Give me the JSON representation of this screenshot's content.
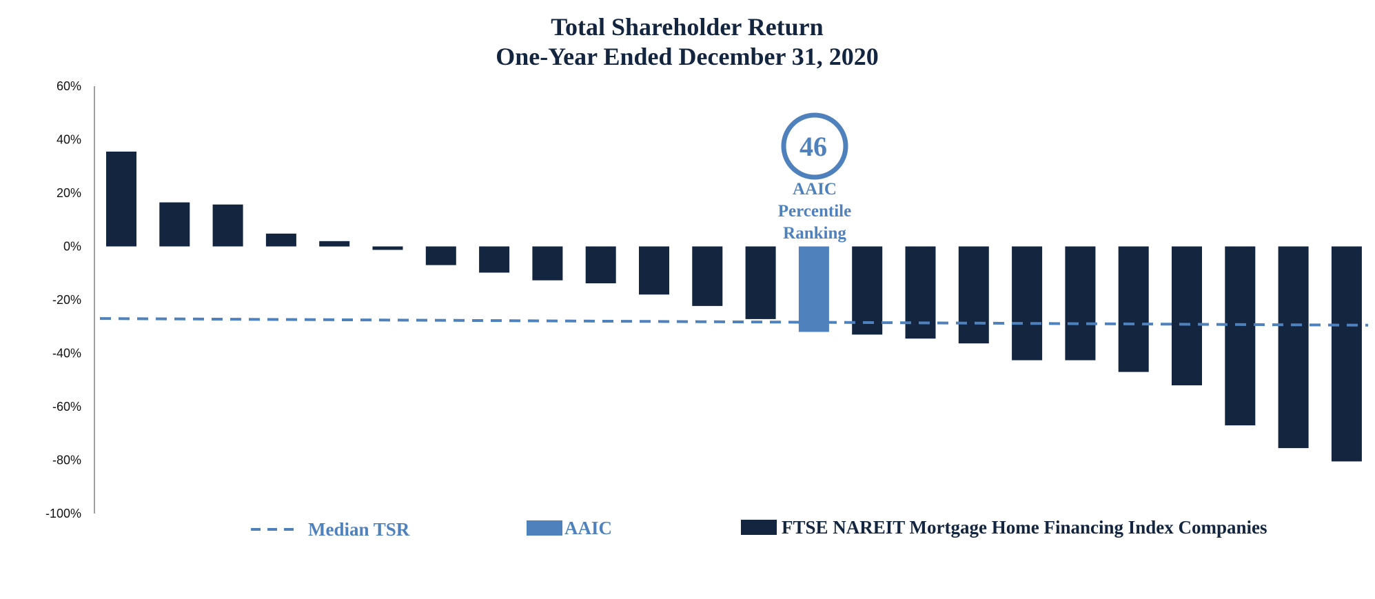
{
  "chart_data": {
    "type": "bar",
    "title_lines": [
      "Total Shareholder Return",
      "One-Year Ended December 31, 2020"
    ],
    "ylim": [
      -100,
      60
    ],
    "y_ticks": [
      60,
      40,
      20,
      0,
      -20,
      -40,
      -60,
      -80,
      -100
    ],
    "y_tick_labels": [
      "60%",
      "40%",
      "20%",
      "0%",
      "-20%",
      "-40%",
      "-60%",
      "-80%",
      "-100%"
    ],
    "xlabel": "",
    "ylabel": "",
    "grid": false,
    "series": [
      {
        "name": "FTSE NAREIT Mortgage Home Financing Index Companies",
        "values": [
          35.5,
          16.5,
          15.7,
          4.8,
          2.0,
          -1.3,
          -7.0,
          -9.8,
          -12.7,
          -13.8,
          -18.0,
          -22.3,
          -27.2,
          null,
          -33.0,
          -34.5,
          -36.3,
          -42.6,
          -42.6,
          -47.0,
          -52.0,
          -67.0,
          -75.5,
          -80.5
        ]
      },
      {
        "name": "AAIC",
        "values": [
          null,
          null,
          null,
          null,
          null,
          null,
          null,
          null,
          null,
          null,
          null,
          null,
          null,
          -32.0,
          null,
          null,
          null,
          null,
          null,
          null,
          null,
          null,
          null,
          null
        ]
      }
    ],
    "median_tsr": {
      "name": "Median TSR",
      "start": -27,
      "end": -29.5
    },
    "annotation": {
      "value": "46",
      "lines": [
        "AAIC",
        "Percentile",
        "Ranking"
      ]
    },
    "legend": [
      "Median TSR",
      "AAIC",
      "FTSE NAREIT Mortgage Home Financing Index Companies"
    ],
    "legend_position": "bottom",
    "colors": {
      "index": "#13253f",
      "aaic": "#4f81bd",
      "median": "#4f81bd",
      "axis": "#7f7f7f"
    }
  }
}
